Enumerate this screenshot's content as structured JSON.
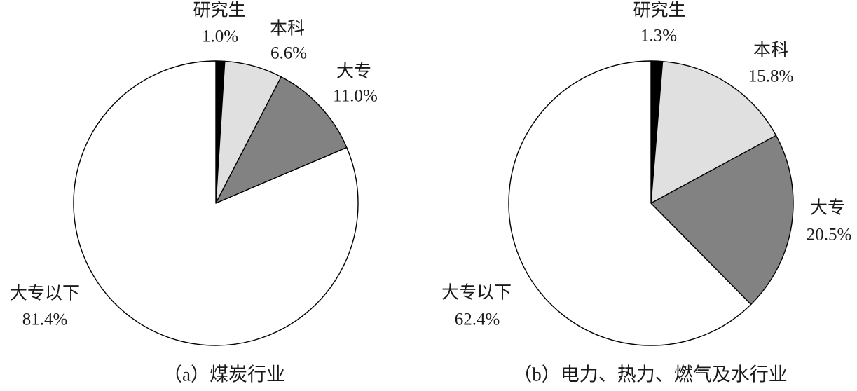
{
  "chart_data": [
    {
      "type": "pie",
      "title": "（a）煤炭行业",
      "labels": [
        "研究生",
        "本科",
        "大专",
        "大专以下"
      ],
      "values": [
        1.0,
        6.6,
        11.0,
        81.4
      ],
      "value_labels": [
        "1.0%",
        "6.6%",
        "11.0%",
        "81.4%"
      ],
      "colors": [
        "#000000",
        "#e0e0e0",
        "#828282",
        "#ffffff"
      ],
      "stroke_color": "#000000",
      "start_angle_deg": 0,
      "direction": "clockwise",
      "legend": "none",
      "label_position": "outside"
    },
    {
      "type": "pie",
      "title": "（b）电力、热力、燃气及水行业",
      "labels": [
        "研究生",
        "本科",
        "大专",
        "大专以下"
      ],
      "values": [
        1.3,
        15.8,
        20.5,
        62.4
      ],
      "value_labels": [
        "1.3%",
        "15.8%",
        "20.5%",
        "62.4%"
      ],
      "colors": [
        "#000000",
        "#e0e0e0",
        "#828282",
        "#ffffff"
      ],
      "stroke_color": "#000000",
      "start_angle_deg": 0,
      "direction": "clockwise",
      "legend": "none",
      "label_position": "outside"
    }
  ]
}
